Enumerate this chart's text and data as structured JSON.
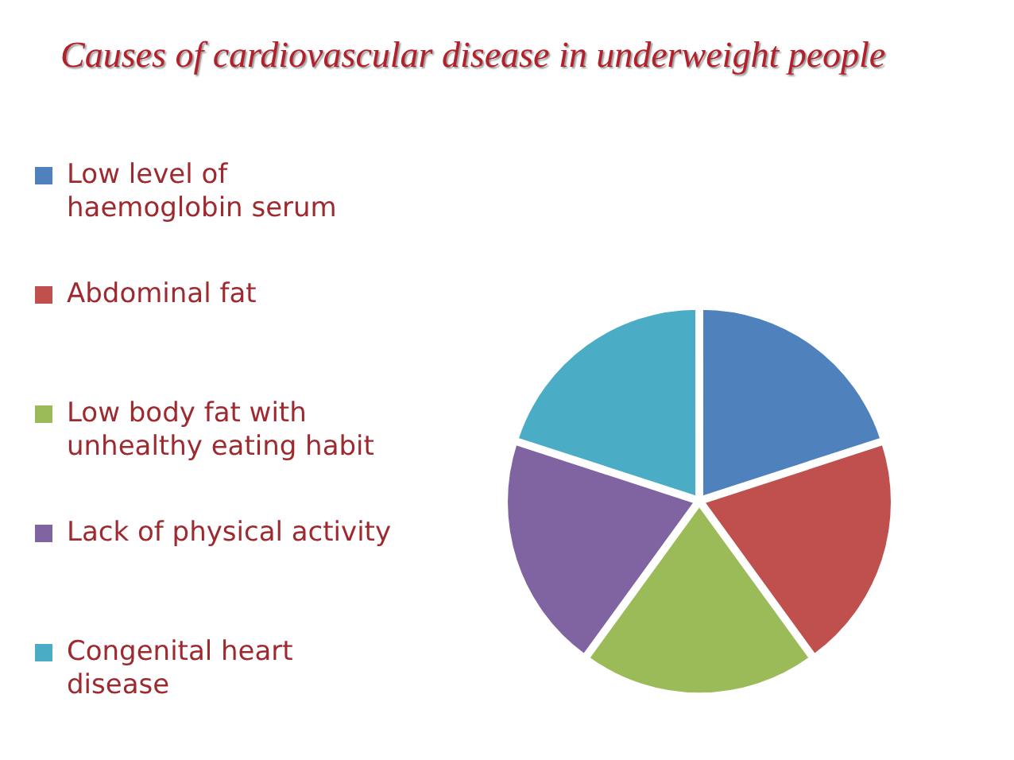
{
  "chart_data": {
    "type": "pie",
    "title": "Causes of cardiovascular disease in underweight people",
    "categories": [
      "Low level of haemoglobin serum",
      "Abdominal fat",
      "Low body fat with unhealthy eating habit",
      "Lack of physical activity",
      "Congenital heart disease"
    ],
    "values": [
      20,
      20,
      20,
      20,
      20
    ],
    "colors": [
      "#4f81bd",
      "#c0504d",
      "#9bbb59",
      "#8064a2",
      "#4bacc6"
    ],
    "legend": "left"
  }
}
